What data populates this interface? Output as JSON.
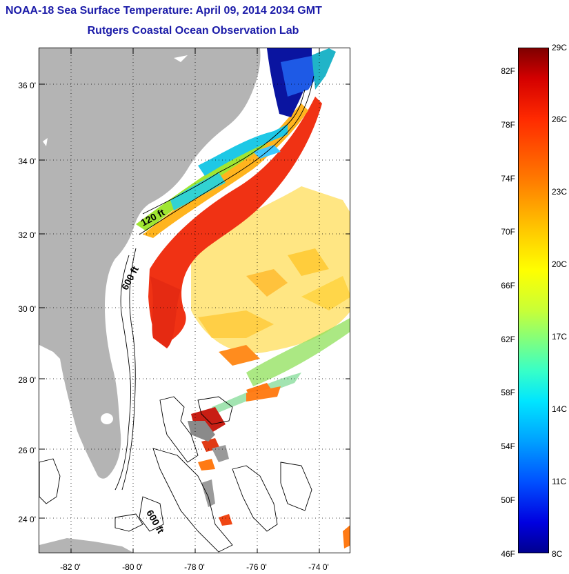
{
  "title": {
    "line1": "NOAA-18 Sea Surface Temperature:  April 09, 2014 2034 GMT",
    "line2": "Rutgers Coastal Ocean Observation Lab"
  },
  "map": {
    "lat_labels": [
      "36 0'",
      "34 0'",
      "32 0'",
      "30 0'",
      "28 0'",
      "26 0'",
      "24 0'"
    ],
    "lon_labels": [
      "-82 0'",
      "-80 0'",
      "-78 0'",
      "-76 0'",
      "-74 0'"
    ],
    "contour_labels": [
      "120 ft",
      "600 ft",
      "600 ft"
    ],
    "colors": {
      "land": "#b4b4b4",
      "ocean_nodata": "#ffffff"
    }
  },
  "colorbar": {
    "fahrenheit_labels": [
      "82F",
      "78F",
      "74F",
      "70F",
      "66F",
      "62F",
      "58F",
      "54F",
      "50F",
      "46F"
    ],
    "celsius_labels": [
      "29C",
      "26C",
      "23C",
      "20C",
      "17C",
      "14C",
      "11C",
      "8C"
    ],
    "min_celsius": 8,
    "max_celsius": 29,
    "colormap": "jet"
  }
}
